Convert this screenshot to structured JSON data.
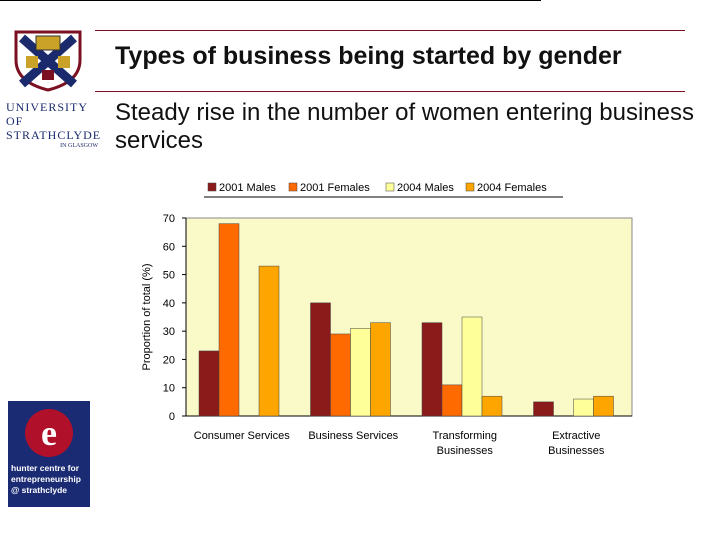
{
  "slide": {
    "title": "Types of business being started by gender",
    "subtitle": "Steady rise in the number of women entering business services"
  },
  "logos": {
    "university_line1": "UNIVERSITY OF",
    "university_line2": "STRATHCLYDE",
    "university_line3": "IN GLASGOW",
    "hunter_text": [
      "hunter centre for",
      "entrepreneurship",
      "@ strathclyde"
    ],
    "hunter_letter": "e"
  },
  "chart_data": {
    "type": "bar",
    "title": "",
    "xlabel": "",
    "ylabel": "Proportion of total (%)",
    "ylim": [
      0,
      70
    ],
    "yticks": [
      0,
      10,
      20,
      30,
      40,
      50,
      60,
      70
    ],
    "grid": false,
    "legend_position": "top",
    "categories": [
      "Consumer Services",
      "Business Services",
      "Transforming Businesses",
      "Extractive Businesses"
    ],
    "category_lines": [
      [
        "Consumer Services"
      ],
      [
        "Business Services"
      ],
      [
        "Transforming",
        "Businesses"
      ],
      [
        "Extractive",
        "Businesses"
      ]
    ],
    "series": [
      {
        "name": "2001 Males",
        "values": [
          23,
          40,
          33,
          5
        ],
        "color": "#8b1a1a"
      },
      {
        "name": "2001 Females",
        "values": [
          68,
          29,
          11,
          0
        ],
        "color": "#ff6a00"
      },
      {
        "name": "2004 Males",
        "values": [
          0,
          31,
          35,
          6
        ],
        "color": "#ffff99"
      },
      {
        "name": "2004 Females",
        "values": [
          53,
          33,
          7,
          7
        ],
        "color": "#ffa500"
      }
    ],
    "plot_background": "#fafac8"
  }
}
